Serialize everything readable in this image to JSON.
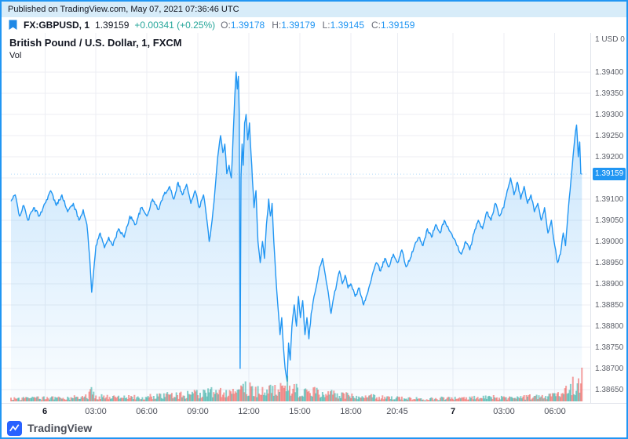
{
  "published_bar": {
    "text": "Published on TradingView.com, May 07, 2021 07:36:46 UTC"
  },
  "header": {
    "symbol": "FX:GBPUSD, 1",
    "last_price": "1.39159",
    "change": "+0.00341 (+0.25%)",
    "ohlc": [
      {
        "label": "O:",
        "value": "1.39178"
      },
      {
        "label": "H:",
        "value": "1.39179"
      },
      {
        "label": "L:",
        "value": "1.39145"
      },
      {
        "label": "C:",
        "value": "1.39159"
      }
    ]
  },
  "chart_panel": {
    "title": "British Pound / U.S. Dollar, 1, FXCM",
    "vol_label": "Vol",
    "scale_top": "1 USD 0",
    "price_badge": "1.39159"
  },
  "footer": {
    "brand": "TradingView"
  },
  "colors": {
    "accent": "#2196f3",
    "frame": "#2196f3",
    "positive": "#26a69a",
    "volume_up": "#26a69a",
    "volume_down": "#ef5350",
    "grid": "#eceef3",
    "badge": "#2196f3",
    "pub_bar_bg": "#d7ecf9"
  },
  "chart_data": {
    "type": "area",
    "symbol": "GBPUSD",
    "exchange": "FXCM",
    "interval": "1",
    "title": "British Pound / U.S. Dollar, 1, FXCM",
    "last": 1.39159,
    "change": 0.00341,
    "change_pct": 0.25,
    "ohlc": {
      "open": 1.39178,
      "high": 1.39179,
      "low": 1.39145,
      "close": 1.39159
    },
    "y_axis": {
      "min": 1.3865,
      "max": 1.394,
      "step": 0.0005,
      "labels": [
        "1.39400",
        "1.39350",
        "1.39300",
        "1.39250",
        "1.39200",
        "1.39150",
        "1.39100",
        "1.39050",
        "1.39000",
        "1.38950",
        "1.38900",
        "1.38850",
        "1.38800",
        "1.38750",
        "1.38700",
        "1.38650"
      ]
    },
    "x_axis": {
      "start_minutes": 0,
      "end_minutes": 2040,
      "labels": [
        {
          "text": "6",
          "t": 120,
          "day": true
        },
        {
          "text": "03:00",
          "t": 300
        },
        {
          "text": "06:00",
          "t": 480
        },
        {
          "text": "09:00",
          "t": 660
        },
        {
          "text": "12:00",
          "t": 840
        },
        {
          "text": "15:00",
          "t": 1020
        },
        {
          "text": "18:00",
          "t": 1200
        },
        {
          "text": "20:45",
          "t": 1365
        },
        {
          "text": "7",
          "t": 1560,
          "day": true
        },
        {
          "text": "03:00",
          "t": 1740
        },
        {
          "text": "06:00",
          "t": 1920
        }
      ]
    },
    "series_keypoints": [
      [
        0,
        1.39095
      ],
      [
        15,
        1.3911
      ],
      [
        30,
        1.3906
      ],
      [
        45,
        1.39085
      ],
      [
        60,
        1.3905
      ],
      [
        80,
        1.3908
      ],
      [
        100,
        1.3906
      ],
      [
        120,
        1.3909
      ],
      [
        140,
        1.3912
      ],
      [
        160,
        1.39085
      ],
      [
        180,
        1.3911
      ],
      [
        200,
        1.3907
      ],
      [
        220,
        1.3909
      ],
      [
        240,
        1.3905
      ],
      [
        255,
        1.39075
      ],
      [
        268,
        1.3904
      ],
      [
        278,
        1.3896
      ],
      [
        285,
        1.3888
      ],
      [
        292,
        1.3893
      ],
      [
        300,
        1.3899
      ],
      [
        315,
        1.3902
      ],
      [
        330,
        1.38985
      ],
      [
        345,
        1.3901
      ],
      [
        360,
        1.3899
      ],
      [
        380,
        1.3903
      ],
      [
        400,
        1.3901
      ],
      [
        420,
        1.3906
      ],
      [
        440,
        1.3904
      ],
      [
        460,
        1.3908
      ],
      [
        480,
        1.3906
      ],
      [
        500,
        1.391
      ],
      [
        520,
        1.39075
      ],
      [
        540,
        1.3911
      ],
      [
        560,
        1.3913
      ],
      [
        575,
        1.391
      ],
      [
        590,
        1.3914
      ],
      [
        605,
        1.3911
      ],
      [
        620,
        1.39135
      ],
      [
        635,
        1.3909
      ],
      [
        650,
        1.3912
      ],
      [
        665,
        1.3908
      ],
      [
        680,
        1.3911
      ],
      [
        690,
        1.3906
      ],
      [
        700,
        1.39
      ],
      [
        710,
        1.3905
      ],
      [
        720,
        1.3912
      ],
      [
        730,
        1.392
      ],
      [
        740,
        1.3925
      ],
      [
        748,
        1.3921
      ],
      [
        755,
        1.3923
      ],
      [
        762,
        1.3916
      ],
      [
        770,
        1.3918
      ],
      [
        778,
        1.3915
      ],
      [
        785,
        1.3926
      ],
      [
        790,
        1.3934
      ],
      [
        795,
        1.394
      ],
      [
        799,
        1.3936
      ],
      [
        803,
        1.3939
      ],
      [
        806,
        1.393
      ],
      [
        809,
        1.387
      ],
      [
        812,
        1.3915
      ],
      [
        816,
        1.3923
      ],
      [
        820,
        1.3918
      ],
      [
        825,
        1.3928
      ],
      [
        830,
        1.393
      ],
      [
        836,
        1.3924
      ],
      [
        842,
        1.3928
      ],
      [
        850,
        1.3918
      ],
      [
        858,
        1.3908
      ],
      [
        865,
        1.3912
      ],
      [
        872,
        1.39
      ],
      [
        880,
        1.3895
      ],
      [
        888,
        1.39
      ],
      [
        895,
        1.3896
      ],
      [
        902,
        1.3904
      ],
      [
        910,
        1.391
      ],
      [
        916,
        1.3906
      ],
      [
        922,
        1.3909
      ],
      [
        928,
        1.39
      ],
      [
        935,
        1.3892
      ],
      [
        942,
        1.3885
      ],
      [
        950,
        1.3878
      ],
      [
        956,
        1.3882
      ],
      [
        962,
        1.3875
      ],
      [
        968,
        1.387
      ],
      [
        975,
        1.3867
      ],
      [
        980,
        1.3876
      ],
      [
        986,
        1.3872
      ],
      [
        992,
        1.388
      ],
      [
        1000,
        1.3885
      ],
      [
        1008,
        1.388
      ],
      [
        1015,
        1.3887
      ],
      [
        1022,
        1.3882
      ],
      [
        1030,
        1.3886
      ],
      [
        1038,
        1.3878
      ],
      [
        1045,
        1.3882
      ],
      [
        1052,
        1.3877
      ],
      [
        1060,
        1.3883
      ],
      [
        1070,
        1.3887
      ],
      [
        1080,
        1.389
      ],
      [
        1090,
        1.3894
      ],
      [
        1100,
        1.3896
      ],
      [
        1110,
        1.3892
      ],
      [
        1120,
        1.3888
      ],
      [
        1130,
        1.3883
      ],
      [
        1140,
        1.3887
      ],
      [
        1150,
        1.389
      ],
      [
        1160,
        1.3893
      ],
      [
        1170,
        1.389
      ],
      [
        1180,
        1.3892
      ],
      [
        1190,
        1.3889
      ],
      [
        1200,
        1.389
      ],
      [
        1215,
        1.3887
      ],
      [
        1230,
        1.3889
      ],
      [
        1245,
        1.3885
      ],
      [
        1260,
        1.3888
      ],
      [
        1275,
        1.3892
      ],
      [
        1290,
        1.3895
      ],
      [
        1305,
        1.3893
      ],
      [
        1320,
        1.3896
      ],
      [
        1335,
        1.3894
      ],
      [
        1350,
        1.3897
      ],
      [
        1365,
        1.3895
      ],
      [
        1380,
        1.3898
      ],
      [
        1395,
        1.3894
      ],
      [
        1410,
        1.3896
      ],
      [
        1425,
        1.3899
      ],
      [
        1440,
        1.3901
      ],
      [
        1455,
        1.3899
      ],
      [
        1470,
        1.3903
      ],
      [
        1485,
        1.3901
      ],
      [
        1500,
        1.3904
      ],
      [
        1515,
        1.3902
      ],
      [
        1530,
        1.3905
      ],
      [
        1545,
        1.3903
      ],
      [
        1560,
        1.3901
      ],
      [
        1575,
        1.3899
      ],
      [
        1590,
        1.3897
      ],
      [
        1605,
        1.39
      ],
      [
        1620,
        1.3898
      ],
      [
        1635,
        1.3902
      ],
      [
        1650,
        1.3905
      ],
      [
        1665,
        1.3903
      ],
      [
        1680,
        1.3907
      ],
      [
        1695,
        1.3905
      ],
      [
        1710,
        1.3909
      ],
      [
        1725,
        1.3906
      ],
      [
        1740,
        1.3908
      ],
      [
        1752,
        1.3912
      ],
      [
        1764,
        1.3915
      ],
      [
        1776,
        1.3911
      ],
      [
        1788,
        1.3914
      ],
      [
        1800,
        1.391
      ],
      [
        1812,
        1.3913
      ],
      [
        1824,
        1.3909
      ],
      [
        1836,
        1.3911
      ],
      [
        1848,
        1.3907
      ],
      [
        1860,
        1.3909
      ],
      [
        1872,
        1.3905
      ],
      [
        1884,
        1.3908
      ],
      [
        1896,
        1.3902
      ],
      [
        1908,
        1.3905
      ],
      [
        1920,
        1.3899
      ],
      [
        1930,
        1.3895
      ],
      [
        1940,
        1.3897
      ],
      [
        1950,
        1.3902
      ],
      [
        1958,
        1.3899
      ],
      [
        1966,
        1.3906
      ],
      [
        1974,
        1.3912
      ],
      [
        1982,
        1.3918
      ],
      [
        1990,
        1.3924
      ],
      [
        1997,
        1.39275
      ],
      [
        2003,
        1.392
      ],
      [
        2008,
        1.39235
      ],
      [
        2012,
        1.3916
      ],
      [
        2016,
        1.39159
      ]
    ],
    "volume_profile": [
      [
        0,
        0.1
      ],
      [
        120,
        0.12
      ],
      [
        200,
        0.14
      ],
      [
        270,
        0.18
      ],
      [
        285,
        0.4
      ],
      [
        300,
        0.18
      ],
      [
        360,
        0.14
      ],
      [
        420,
        0.15
      ],
      [
        480,
        0.2
      ],
      [
        540,
        0.22
      ],
      [
        600,
        0.24
      ],
      [
        660,
        0.28
      ],
      [
        700,
        0.32
      ],
      [
        740,
        0.38
      ],
      [
        780,
        0.42
      ],
      [
        795,
        0.65
      ],
      [
        809,
        1.0
      ],
      [
        820,
        0.55
      ],
      [
        840,
        0.45
      ],
      [
        870,
        0.38
      ],
      [
        910,
        0.42
      ],
      [
        950,
        0.5
      ],
      [
        975,
        0.6
      ],
      [
        1000,
        0.42
      ],
      [
        1052,
        0.38
      ],
      [
        1080,
        0.32
      ],
      [
        1130,
        0.28
      ],
      [
        1200,
        0.22
      ],
      [
        1260,
        0.18
      ],
      [
        1320,
        0.14
      ],
      [
        1365,
        0.12
      ],
      [
        1440,
        0.1
      ],
      [
        1560,
        0.12
      ],
      [
        1620,
        0.13
      ],
      [
        1680,
        0.14
      ],
      [
        1740,
        0.16
      ],
      [
        1800,
        0.16
      ],
      [
        1860,
        0.17
      ],
      [
        1920,
        0.22
      ],
      [
        1956,
        0.4
      ],
      [
        1980,
        0.6
      ],
      [
        2000,
        0.5
      ],
      [
        2016,
        0.95
      ]
    ],
    "legend_position": "top-left",
    "grid": true
  }
}
